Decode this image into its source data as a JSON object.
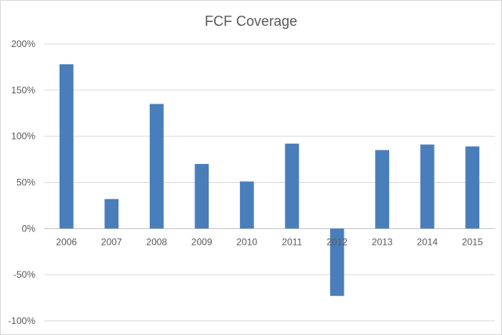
{
  "chart_data": {
    "type": "bar",
    "title": "FCF Coverage",
    "xlabel": "",
    "ylabel": "",
    "categories": [
      "2006",
      "2007",
      "2008",
      "2009",
      "2010",
      "2011",
      "2012",
      "2013",
      "2014",
      "2015"
    ],
    "values": [
      178,
      32,
      135,
      70,
      51,
      92,
      -73,
      85,
      91,
      89
    ],
    "value_unit": "%",
    "ylim": [
      -100,
      200
    ],
    "yticks": [
      -100,
      -50,
      0,
      50,
      100,
      150,
      200
    ],
    "ytick_labels": [
      "-100%",
      "-50%",
      "0%",
      "50%",
      "100%",
      "150%",
      "200%"
    ],
    "grid": true,
    "legend": "none",
    "bar_color": "#4a7ebb"
  }
}
